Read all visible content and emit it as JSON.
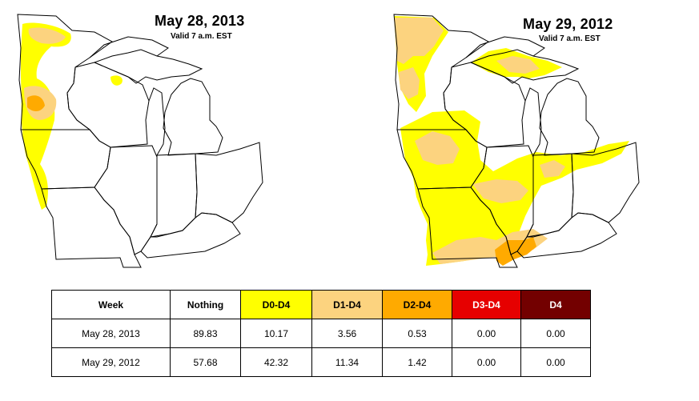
{
  "maps": {
    "left": {
      "title": "May 28, 2013",
      "subtitle": "Valid 7 a.m. EST"
    },
    "right": {
      "title": "May 29, 2012",
      "subtitle": "Valid 7 a.m. EST"
    }
  },
  "legend_colors": {
    "Nothing": "#ffffff",
    "D0": "#ffff00",
    "D1": "#fcd37f",
    "D2": "#ffaa00",
    "D3": "#e60000",
    "D4": "#730000"
  },
  "table": {
    "headers": [
      "Week",
      "Nothing",
      "D0-D4",
      "D1-D4",
      "D2-D4",
      "D3-D4",
      "D4"
    ],
    "header_colors": [
      "#ffffff",
      "#ffffff",
      "#ffff00",
      "#fcd37f",
      "#ffaa00",
      "#e60000",
      "#730000"
    ],
    "header_text_colors": [
      "#000000",
      "#000000",
      "#000000",
      "#000000",
      "#000000",
      "#ffffff",
      "#ffffff"
    ],
    "rows": [
      [
        "May 28, 2013",
        "89.83",
        "10.17",
        "3.56",
        "0.53",
        "0.00",
        "0.00"
      ],
      [
        "May 29, 2012",
        "57.68",
        "42.32",
        "11.34",
        "1.42",
        "0.00",
        "0.00"
      ]
    ]
  }
}
